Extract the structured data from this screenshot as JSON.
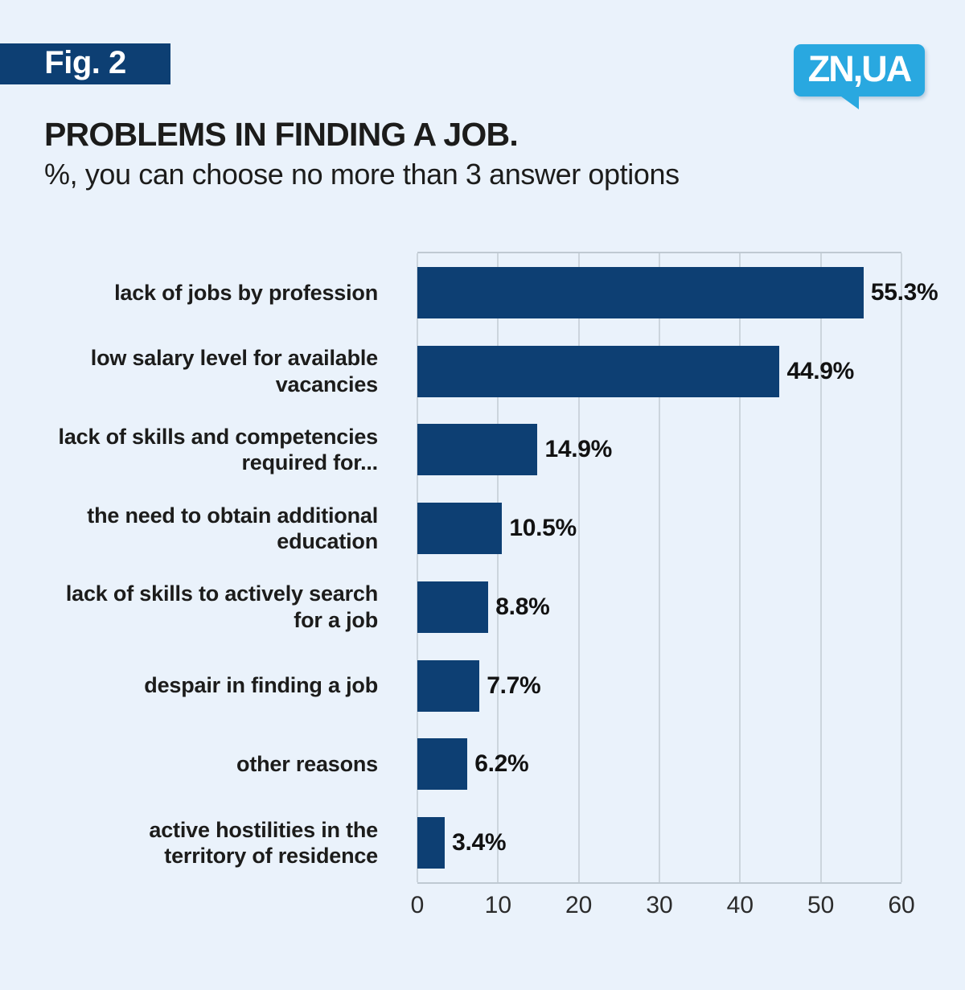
{
  "figure_badge": {
    "label": "Fig. 2"
  },
  "logo": {
    "text": "ZN,UA"
  },
  "header": {
    "title": "PROBLEMS IN FINDING A JOB.",
    "subtitle": "%, you can choose no more than 3 answer options"
  },
  "colors": {
    "background": "#eaf2fb",
    "bar": "#0d3f73",
    "badge_bg": "#0d3f73",
    "logo_bg": "#29a8e0",
    "gridline": "#ccd5dd",
    "text": "#1c1c1b"
  },
  "chart_data": {
    "type": "bar",
    "orientation": "horizontal",
    "title": "PROBLEMS IN FINDING A JOB.",
    "subtitle": "%, you can choose no more than 3 answer options",
    "xlabel": "",
    "ylabel": "",
    "categories": [
      "lack of jobs by profession",
      "low salary level for available\nvacancies",
      "lack of skills and competencies\nrequired for...",
      "the need to obtain additional\neducation",
      "lack of skills to actively search\nfor a job",
      "despair in finding a job",
      "other reasons",
      "active hostilities in the\nterritory of residence"
    ],
    "values": [
      55.3,
      44.9,
      14.9,
      10.5,
      8.8,
      7.7,
      6.2,
      3.4
    ],
    "value_labels": [
      "55.3%",
      "44.9%",
      "14.9%",
      "10.5%",
      "8.8%",
      "7.7%",
      "6.2%",
      "3.4%"
    ],
    "xlim": [
      0,
      60
    ],
    "x_ticks": [
      0,
      10,
      20,
      30,
      40,
      50,
      60
    ],
    "grid": "vertical",
    "legend": "none"
  }
}
